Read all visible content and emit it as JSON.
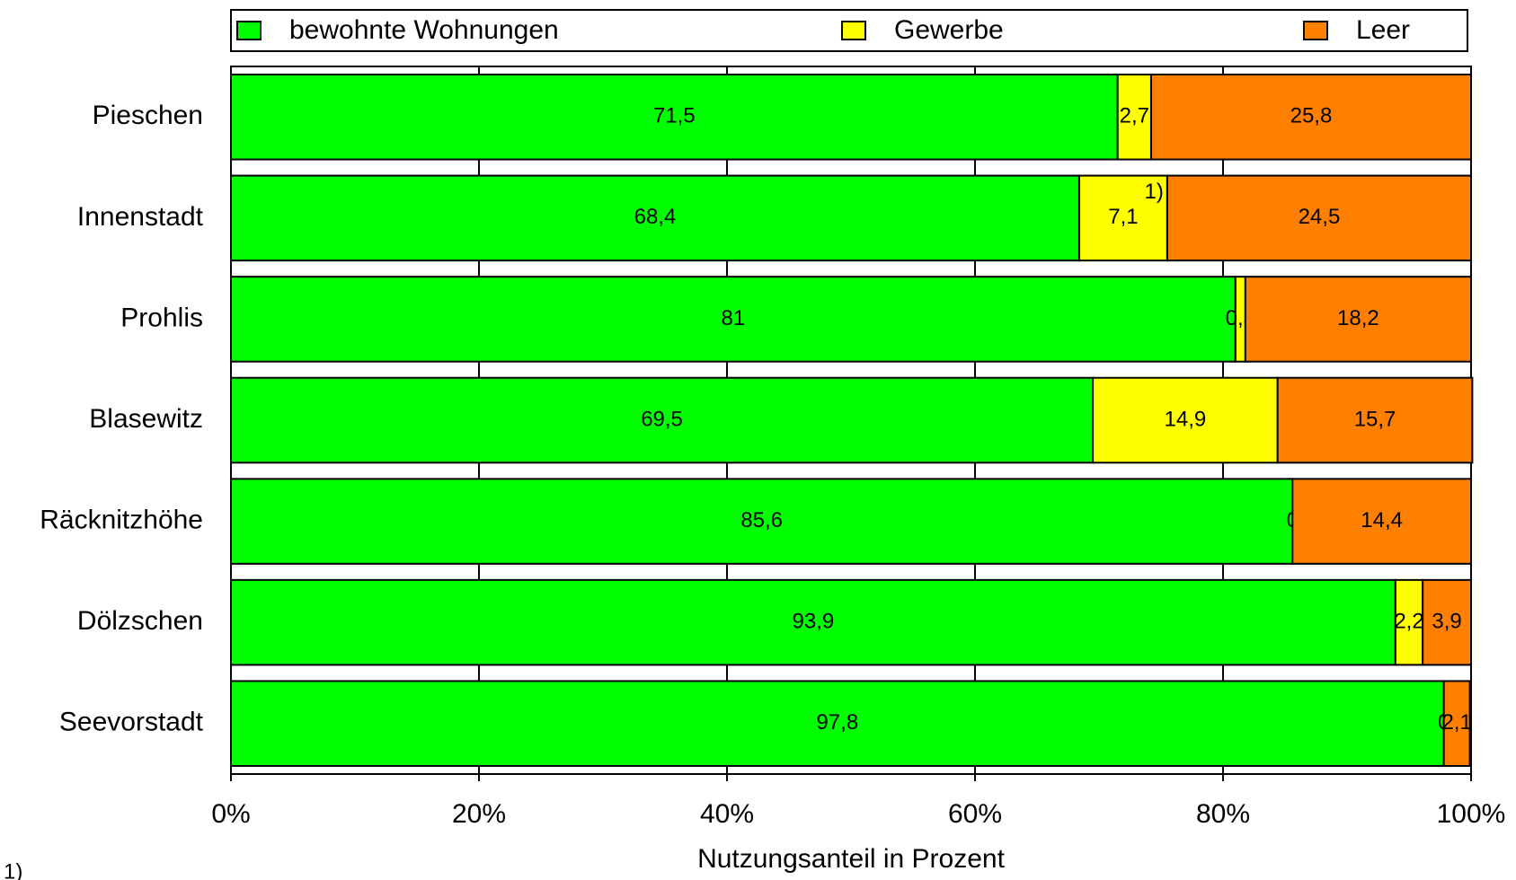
{
  "chart_data": {
    "type": "stacked-bar-horizontal",
    "categories": [
      "Pieschen",
      "Innenstadt",
      "Prohlis",
      "Blasewitz",
      "Räcknitzhöhe",
      "Dölzschen",
      "Seevorstadt"
    ],
    "series": [
      {
        "name": "bewohnte Wohnungen",
        "color": "#00ff00",
        "values": [
          71.5,
          68.4,
          81,
          69.5,
          85.6,
          93.9,
          97.8
        ],
        "value_labels": [
          "71,5",
          "68,4",
          "81",
          "69,5",
          "85,6",
          "93,9",
          "97,8"
        ]
      },
      {
        "name": "Gewerbe",
        "color": "#ffff00",
        "values": [
          2.7,
          7.1,
          0.8,
          14.9,
          0,
          2.2,
          0
        ],
        "value_labels": [
          "2,7",
          "7,1",
          "0,8",
          "14,9",
          "0",
          "2,2",
          "0"
        ]
      },
      {
        "name": "Leer",
        "color": "#ff8000",
        "values": [
          25.8,
          24.5,
          18.2,
          15.7,
          14.4,
          3.9,
          2.1
        ],
        "value_labels": [
          "25,8",
          "24,5",
          "18,2",
          "15,7",
          "14,4",
          "3,9",
          "2,1"
        ]
      }
    ],
    "xlabel": "Nutzungsanteil in Prozent",
    "xlim": [
      0,
      100
    ],
    "xticks": [
      {
        "value": 0,
        "label": "0%"
      },
      {
        "value": 20,
        "label": "20%"
      },
      {
        "value": 40,
        "label": "40%"
      },
      {
        "value": 60,
        "label": "60%"
      },
      {
        "value": 80,
        "label": "80%"
      },
      {
        "value": 100,
        "label": "100%"
      }
    ],
    "grid": true,
    "legend": "top",
    "annotations": [
      "1)",
      "1)"
    ]
  }
}
